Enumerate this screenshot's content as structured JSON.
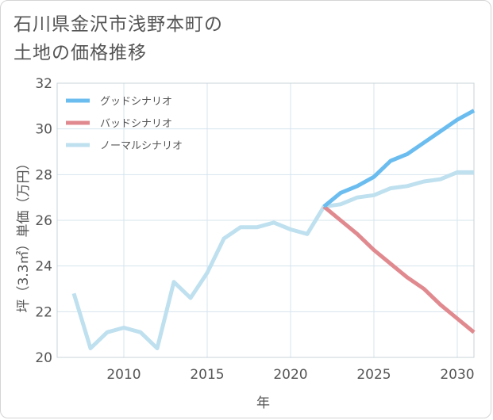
{
  "title_lines": [
    "石川県金沢市浅野本町の",
    "土地の価格推移"
  ],
  "chart_data": {
    "type": "line",
    "xlabel": "年",
    "ylabel": "坪（3.3㎡）単価（万円）",
    "xlim": [
      2006,
      2031
    ],
    "ylim": [
      20,
      32
    ],
    "xticks": [
      2010,
      2015,
      2020,
      2025,
      2030
    ],
    "yticks": [
      20,
      22,
      24,
      26,
      28,
      30,
      32
    ],
    "grid": true,
    "legend_position": "top-left",
    "series": [
      {
        "name": "グッドシナリオ",
        "color": "#6bbcef",
        "x": [
          2022,
          2023,
          2024,
          2025,
          2026,
          2027,
          2028,
          2029,
          2030,
          2031
        ],
        "values": [
          26.6,
          27.2,
          27.5,
          27.9,
          28.6,
          28.9,
          29.4,
          29.9,
          30.4,
          30.8
        ]
      },
      {
        "name": "バッドシナリオ",
        "color": "#e08a8f",
        "x": [
          2022,
          2023,
          2024,
          2025,
          2026,
          2027,
          2028,
          2029,
          2030,
          2031
        ],
        "values": [
          26.6,
          26.0,
          25.4,
          24.7,
          24.1,
          23.5,
          23.0,
          22.3,
          21.7,
          21.1
        ]
      },
      {
        "name": "ノーマルシナリオ",
        "color": "#bfe0ef",
        "x": [
          2007,
          2008,
          2009,
          2010,
          2011,
          2012,
          2013,
          2014,
          2015,
          2016,
          2017,
          2018,
          2019,
          2020,
          2021,
          2022,
          2023,
          2024,
          2025,
          2026,
          2027,
          2028,
          2029,
          2030,
          2031
        ],
        "values": [
          22.8,
          20.4,
          21.1,
          21.3,
          21.1,
          20.4,
          23.3,
          22.6,
          23.7,
          25.2,
          25.7,
          25.7,
          25.9,
          25.6,
          25.4,
          26.6,
          26.7,
          27.0,
          27.1,
          27.4,
          27.5,
          27.7,
          27.8,
          28.1,
          28.1
        ]
      }
    ]
  }
}
